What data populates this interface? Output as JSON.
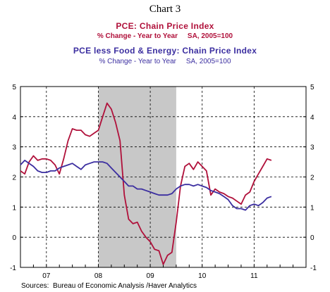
{
  "page_title": "Chart 3",
  "colors": {
    "pce": "#b0103a",
    "core": "#3b2ea0",
    "recession": "#c8c8c8",
    "axis": "#000000"
  },
  "chart_data": {
    "type": "line",
    "x_unit": "year",
    "xlim": [
      2006.25,
      2011.75
    ],
    "ylim": [
      -1,
      5
    ],
    "y_ticks": [
      -1,
      0,
      1,
      2,
      3,
      4,
      5
    ],
    "y_tick_labels": [
      "-1",
      "0",
      "1",
      "2",
      "3",
      "4",
      "5"
    ],
    "x_tick_labels": [
      {
        "label": "07",
        "at": 2006.75
      },
      {
        "label": "08",
        "at": 2007.75
      },
      {
        "label": "09",
        "at": 2008.75
      },
      {
        "label": "10",
        "at": 2009.75
      },
      {
        "label": "11",
        "at": 2010.75
      }
    ],
    "grid": "dashed",
    "shaded_period": [
      2007.75,
      2009.25
    ],
    "titles": [
      {
        "title": "PCE: Chain Price Index",
        "subtitle": "% Change - Year to Year     SA, 2005=100"
      },
      {
        "title": "PCE less Food & Energy: Chain Price Index",
        "subtitle": "% Change - Year to Year     SA, 2005=100"
      }
    ],
    "source": "Sources:  Bureau of Economic Analysis /Haver Analytics",
    "series": [
      {
        "key": "pce",
        "x": [
          2006.25,
          2006.333,
          2006.417,
          2006.5,
          2006.583,
          2006.667,
          2006.75,
          2006.833,
          2006.917,
          2007.0,
          2007.083,
          2007.167,
          2007.25,
          2007.333,
          2007.417,
          2007.5,
          2007.583,
          2007.667,
          2007.75,
          2007.833,
          2007.917,
          2008.0,
          2008.083,
          2008.167,
          2008.25,
          2008.333,
          2008.417,
          2008.5,
          2008.583,
          2008.667,
          2008.75,
          2008.833,
          2008.917,
          2009.0,
          2009.083,
          2009.167,
          2009.25,
          2009.333,
          2009.417,
          2009.5,
          2009.583,
          2009.667,
          2009.75,
          2009.833,
          2009.917,
          2010.0,
          2010.083,
          2010.167,
          2010.25,
          2010.333,
          2010.417,
          2010.5,
          2010.583,
          2010.667,
          2010.75,
          2010.833,
          2010.917,
          2011.0,
          2011.083
        ],
        "values": [
          2.2,
          2.1,
          2.5,
          2.7,
          2.55,
          2.6,
          2.6,
          2.55,
          2.4,
          2.1,
          2.6,
          3.2,
          3.6,
          3.55,
          3.55,
          3.4,
          3.35,
          3.45,
          3.55,
          4.0,
          4.45,
          4.25,
          3.8,
          3.2,
          1.4,
          0.6,
          0.45,
          0.5,
          0.2,
          0.0,
          -0.15,
          -0.4,
          -0.45,
          -0.9,
          -0.6,
          -0.5,
          0.5,
          1.7,
          2.35,
          2.45,
          2.25,
          2.5,
          2.35,
          2.2,
          1.4,
          1.6,
          1.5,
          1.45,
          1.35,
          1.3,
          1.2,
          1.1,
          1.4,
          1.5,
          1.85,
          2.1,
          2.35,
          2.6,
          2.55
        ]
      },
      {
        "key": "core",
        "x": [
          2006.25,
          2006.333,
          2006.417,
          2006.5,
          2006.583,
          2006.667,
          2006.75,
          2006.833,
          2006.917,
          2007.0,
          2007.083,
          2007.167,
          2007.25,
          2007.333,
          2007.417,
          2007.5,
          2007.583,
          2007.667,
          2007.75,
          2007.833,
          2007.917,
          2008.0,
          2008.083,
          2008.167,
          2008.25,
          2008.333,
          2008.417,
          2008.5,
          2008.583,
          2008.667,
          2008.75,
          2008.833,
          2008.917,
          2009.0,
          2009.083,
          2009.167,
          2009.25,
          2009.333,
          2009.417,
          2009.5,
          2009.583,
          2009.667,
          2009.75,
          2009.833,
          2009.917,
          2010.0,
          2010.083,
          2010.167,
          2010.25,
          2010.333,
          2010.417,
          2010.5,
          2010.583,
          2010.667,
          2010.75,
          2010.833,
          2010.917,
          2011.0,
          2011.083
        ],
        "values": [
          2.4,
          2.55,
          2.45,
          2.35,
          2.2,
          2.15,
          2.15,
          2.2,
          2.2,
          2.3,
          2.35,
          2.4,
          2.45,
          2.35,
          2.25,
          2.4,
          2.45,
          2.5,
          2.5,
          2.5,
          2.45,
          2.3,
          2.15,
          2.0,
          1.85,
          1.7,
          1.7,
          1.6,
          1.6,
          1.55,
          1.5,
          1.45,
          1.4,
          1.4,
          1.4,
          1.45,
          1.6,
          1.7,
          1.75,
          1.75,
          1.7,
          1.75,
          1.7,
          1.65,
          1.55,
          1.5,
          1.45,
          1.35,
          1.25,
          1.05,
          0.95,
          0.95,
          0.9,
          1.05,
          1.1,
          1.05,
          1.15,
          1.3,
          1.35
        ]
      }
    ]
  }
}
